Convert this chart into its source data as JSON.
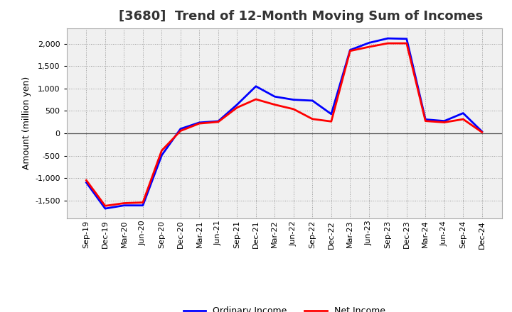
{
  "title": "[3680]  Trend of 12-Month Moving Sum of Incomes",
  "ylabel": "Amount (million yen)",
  "x_labels": [
    "Sep-19",
    "Dec-19",
    "Mar-20",
    "Jun-20",
    "Sep-20",
    "Dec-20",
    "Mar-21",
    "Jun-21",
    "Sep-21",
    "Dec-21",
    "Mar-22",
    "Jun-22",
    "Sep-22",
    "Dec-22",
    "Mar-23",
    "Jun-23",
    "Sep-23",
    "Dec-23",
    "Mar-24",
    "Jun-24",
    "Sep-24",
    "Dec-24"
  ],
  "ordinary_income": [
    -1100,
    -1680,
    -1610,
    -1610,
    -490,
    100,
    240,
    270,
    640,
    1050,
    820,
    750,
    730,
    430,
    1860,
    2020,
    2120,
    2110,
    310,
    275,
    450,
    40
  ],
  "net_income": [
    -1050,
    -1620,
    -1560,
    -1545,
    -385,
    55,
    220,
    255,
    575,
    760,
    640,
    540,
    320,
    265,
    1840,
    1930,
    2010,
    2010,
    275,
    245,
    315,
    25
  ],
  "ordinary_color": "#0000ff",
  "net_color": "#ff0000",
  "ylim": [
    -1900,
    2350
  ],
  "yticks": [
    -1500,
    -1000,
    -500,
    0,
    500,
    1000,
    1500,
    2000
  ],
  "background_color": "#ffffff",
  "plot_bg_color": "#f0f0f0",
  "grid_color": "#999999",
  "title_fontsize": 13,
  "label_fontsize": 9,
  "tick_fontsize": 8,
  "legend_fontsize": 9,
  "linewidth": 2.0
}
